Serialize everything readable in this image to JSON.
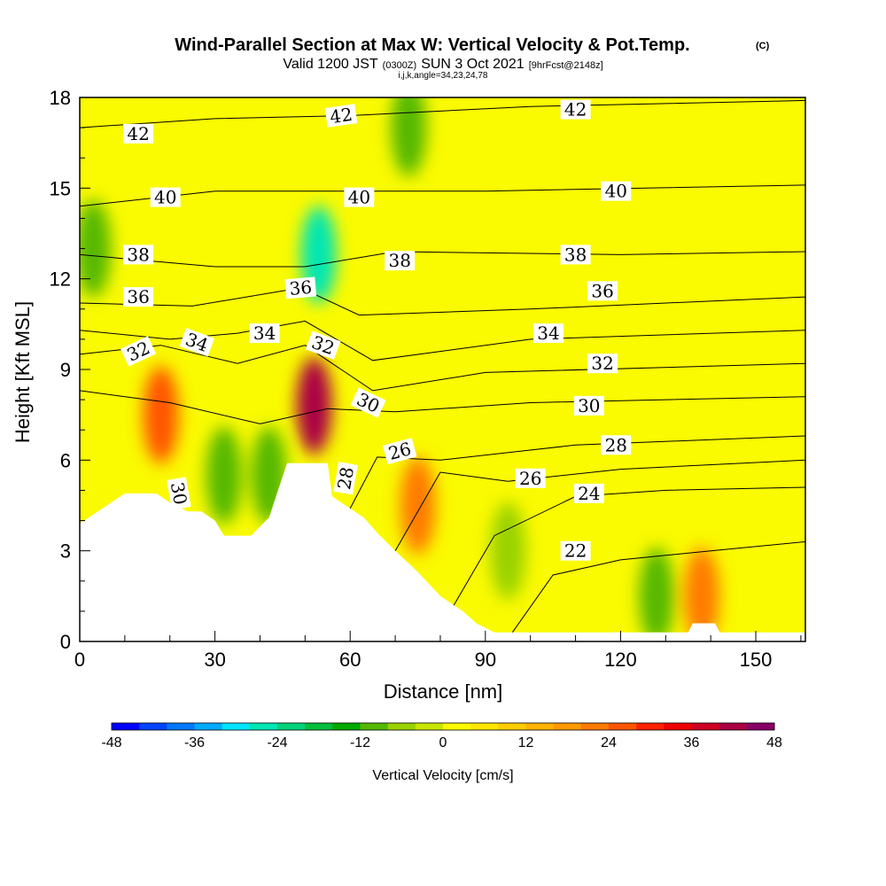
{
  "header": {
    "title": "Wind-Parallel Section at Max W: Vertical Velocity & Pot.Temp.",
    "copyright": "(C)",
    "valid_prefix": "Valid 1200 JST",
    "valid_utc": "(0300Z)",
    "valid_date": "SUN 3 Oct 2021",
    "forecast": "[9hrFcst@2148z]",
    "params": "i,j,k,angle=34,23,24,78"
  },
  "colors": {
    "terrain": "#ffffff",
    "contour_line": "#000000",
    "frame": "#000000"
  },
  "chart_data": {
    "type": "heatmap",
    "title": "Wind-Parallel Section at Max W: Vertical Velocity & Pot.Temp.",
    "xlabel": "Distance [nm]",
    "ylabel": "Height [Kft MSL]",
    "xlim": [
      0,
      161
    ],
    "ylim": [
      0,
      18
    ],
    "x_ticks": [
      "0",
      "30",
      "60",
      "90",
      "120",
      "150"
    ],
    "y_ticks": [
      "0",
      "3",
      "6",
      "9",
      "12",
      "15",
      "18"
    ],
    "colorbar": {
      "title": "Vertical Velocity [cm/s]",
      "levels": [
        -48,
        -44,
        -40,
        -36,
        -32,
        -28,
        -24,
        -20,
        -16,
        -12,
        -8,
        -4,
        0,
        4,
        8,
        12,
        16,
        20,
        24,
        28,
        32,
        36,
        40,
        44,
        48
      ],
      "tick_labels": [
        "-48",
        "-36",
        "-24",
        "-12",
        "0",
        "12",
        "24",
        "36",
        "48"
      ],
      "colors": [
        "#0000ff",
        "#0044ff",
        "#0077ff",
        "#00aaff",
        "#00e5ff",
        "#00e6b4",
        "#00d27a",
        "#00be3c",
        "#00aa00",
        "#55b800",
        "#99d200",
        "#c8e600",
        "#fafa00",
        "#ffe600",
        "#ffcc00",
        "#ffb300",
        "#ff9900",
        "#ff7a00",
        "#ff5500",
        "#ff2200",
        "#ee0000",
        "#cc0022",
        "#aa0044",
        "#880066",
        "#660088"
      ]
    },
    "velocity_features": [
      {
        "x": 18,
        "y": 7.5,
        "w_cm_s": 24
      },
      {
        "x": 52,
        "y": 7.8,
        "w_cm_s": 40
      },
      {
        "x": 53,
        "y": 12.8,
        "w_cm_s": -28
      },
      {
        "x": 42,
        "y": 5.5,
        "w_cm_s": -12
      },
      {
        "x": 32,
        "y": 5.5,
        "w_cm_s": -12
      },
      {
        "x": 75,
        "y": 4.5,
        "w_cm_s": 20
      },
      {
        "x": 95,
        "y": 3.0,
        "w_cm_s": -8
      },
      {
        "x": 3,
        "y": 13,
        "w_cm_s": -12
      },
      {
        "x": 73,
        "y": 17,
        "w_cm_s": -12
      },
      {
        "x": 128,
        "y": 1.5,
        "w_cm_s": -12
      },
      {
        "x": 138,
        "y": 1.5,
        "w_cm_s": 20
      }
    ],
    "terrain_profile": [
      {
        "x": 0,
        "y": 3.9
      },
      {
        "x": 3,
        "y": 4.2
      },
      {
        "x": 6,
        "y": 4.5
      },
      {
        "x": 10,
        "y": 4.9
      },
      {
        "x": 13,
        "y": 4.9
      },
      {
        "x": 17,
        "y": 4.9
      },
      {
        "x": 20,
        "y": 4.6
      },
      {
        "x": 24,
        "y": 4.3
      },
      {
        "x": 27,
        "y": 4.3
      },
      {
        "x": 30,
        "y": 4.0
      },
      {
        "x": 32,
        "y": 3.5
      },
      {
        "x": 35,
        "y": 3.5
      },
      {
        "x": 38,
        "y": 3.5
      },
      {
        "x": 40,
        "y": 3.8
      },
      {
        "x": 42,
        "y": 4.1
      },
      {
        "x": 44,
        "y": 5.0
      },
      {
        "x": 46,
        "y": 5.9
      },
      {
        "x": 48,
        "y": 5.9
      },
      {
        "x": 52,
        "y": 5.9
      },
      {
        "x": 55,
        "y": 5.9
      },
      {
        "x": 56,
        "y": 4.8
      },
      {
        "x": 58,
        "y": 4.6
      },
      {
        "x": 60,
        "y": 4.4
      },
      {
        "x": 63,
        "y": 4.1
      },
      {
        "x": 66,
        "y": 3.6
      },
      {
        "x": 70,
        "y": 3.0
      },
      {
        "x": 75,
        "y": 2.3
      },
      {
        "x": 80,
        "y": 1.5
      },
      {
        "x": 85,
        "y": 1.0
      },
      {
        "x": 88,
        "y": 0.6
      },
      {
        "x": 92,
        "y": 0.3
      },
      {
        "x": 96,
        "y": 0.3
      },
      {
        "x": 100,
        "y": 0.3
      },
      {
        "x": 110,
        "y": 0.3
      },
      {
        "x": 120,
        "y": 0.3
      },
      {
        "x": 130,
        "y": 0.3
      },
      {
        "x": 135,
        "y": 0.3
      },
      {
        "x": 136,
        "y": 0.6
      },
      {
        "x": 141,
        "y": 0.6
      },
      {
        "x": 142,
        "y": 0.3
      },
      {
        "x": 161,
        "y": 0.3
      }
    ],
    "theta_contours": [
      {
        "value": 22,
        "points": [
          [
            96,
            0.3
          ],
          [
            105,
            2.2
          ],
          [
            120,
            2.7
          ],
          [
            140,
            3.0
          ],
          [
            161,
            3.3
          ]
        ]
      },
      {
        "value": 24,
        "points": [
          [
            83,
            1.2
          ],
          [
            92,
            3.5
          ],
          [
            110,
            4.8
          ],
          [
            130,
            5.0
          ],
          [
            161,
            5.1
          ]
        ]
      },
      {
        "value": 26,
        "points": [
          [
            70,
            3.0
          ],
          [
            80,
            5.6
          ],
          [
            95,
            5.3
          ],
          [
            120,
            5.7
          ],
          [
            161,
            6.0
          ]
        ]
      },
      {
        "value": 28,
        "points": [
          [
            60,
            4.4
          ],
          [
            66,
            6.1
          ],
          [
            80,
            6.0
          ],
          [
            110,
            6.5
          ],
          [
            161,
            6.8
          ]
        ]
      },
      {
        "value": 30,
        "points": [
          [
            0,
            8.3
          ],
          [
            20,
            7.9
          ],
          [
            40,
            7.2
          ],
          [
            55,
            7.7
          ],
          [
            70,
            7.6
          ],
          [
            100,
            7.9
          ],
          [
            161,
            8.1
          ]
        ]
      },
      {
        "value": 32,
        "points": [
          [
            0,
            9.5
          ],
          [
            18,
            9.8
          ],
          [
            35,
            9.2
          ],
          [
            50,
            9.8
          ],
          [
            65,
            8.3
          ],
          [
            90,
            8.9
          ],
          [
            161,
            9.2
          ]
        ]
      },
      {
        "value": 34,
        "points": [
          [
            0,
            10.3
          ],
          [
            20,
            10.0
          ],
          [
            35,
            10.2
          ],
          [
            50,
            10.6
          ],
          [
            65,
            9.3
          ],
          [
            100,
            10.0
          ],
          [
            161,
            10.3
          ]
        ]
      },
      {
        "value": 36,
        "points": [
          [
            0,
            11.2
          ],
          [
            25,
            11.1
          ],
          [
            49,
            11.7
          ],
          [
            62,
            10.8
          ],
          [
            100,
            11.0
          ],
          [
            161,
            11.4
          ]
        ]
      },
      {
        "value": 38,
        "points": [
          [
            0,
            12.8
          ],
          [
            30,
            12.4
          ],
          [
            50,
            12.4
          ],
          [
            70,
            12.9
          ],
          [
            120,
            12.8
          ],
          [
            161,
            12.9
          ]
        ]
      },
      {
        "value": 40,
        "points": [
          [
            0,
            14.4
          ],
          [
            30,
            14.9
          ],
          [
            55,
            14.9
          ],
          [
            90,
            14.9
          ],
          [
            161,
            15.1
          ]
        ]
      },
      {
        "value": 42,
        "points": [
          [
            0,
            17.0
          ],
          [
            30,
            17.3
          ],
          [
            60,
            17.4
          ],
          [
            100,
            17.7
          ],
          [
            161,
            17.9
          ]
        ]
      }
    ],
    "contour_labels": [
      {
        "text": "42",
        "x": 13,
        "y": 16.8,
        "angle": 0
      },
      {
        "text": "42",
        "x": 58,
        "y": 17.4,
        "angle": -8
      },
      {
        "text": "42",
        "x": 110,
        "y": 17.6,
        "angle": 0
      },
      {
        "text": "40",
        "x": 19,
        "y": 14.7,
        "angle": 0
      },
      {
        "text": "40",
        "x": 62,
        "y": 14.7,
        "angle": 0
      },
      {
        "text": "40",
        "x": 119,
        "y": 14.9,
        "angle": 0
      },
      {
        "text": "38",
        "x": 13,
        "y": 12.8,
        "angle": 0
      },
      {
        "text": "38",
        "x": 71,
        "y": 12.6,
        "angle": 0
      },
      {
        "text": "38",
        "x": 110,
        "y": 12.8,
        "angle": 0
      },
      {
        "text": "36",
        "x": 13,
        "y": 11.4,
        "angle": 0
      },
      {
        "text": "36",
        "x": 49,
        "y": 11.7,
        "angle": -5
      },
      {
        "text": "36",
        "x": 116,
        "y": 11.6,
        "angle": 0
      },
      {
        "text": "34",
        "x": 26,
        "y": 9.9,
        "angle": 20
      },
      {
        "text": "34",
        "x": 41,
        "y": 10.2,
        "angle": 0
      },
      {
        "text": "34",
        "x": 104,
        "y": 10.2,
        "angle": 0
      },
      {
        "text": "32",
        "x": 13,
        "y": 9.6,
        "angle": -25
      },
      {
        "text": "32",
        "x": 54,
        "y": 9.8,
        "angle": 20
      },
      {
        "text": "32",
        "x": 116,
        "y": 9.2,
        "angle": 0
      },
      {
        "text": "30",
        "x": 64,
        "y": 7.9,
        "angle": 25
      },
      {
        "text": "30",
        "x": 113,
        "y": 7.8,
        "angle": 0
      },
      {
        "text": "30",
        "x": 22,
        "y": 4.9,
        "angle": 80
      },
      {
        "text": "28",
        "x": 59,
        "y": 5.4,
        "angle": -80
      },
      {
        "text": "28",
        "x": 119,
        "y": 6.5,
        "angle": 0
      },
      {
        "text": "26",
        "x": 71,
        "y": 6.3,
        "angle": -15
      },
      {
        "text": "26",
        "x": 100,
        "y": 5.4,
        "angle": 0
      },
      {
        "text": "24",
        "x": 113,
        "y": 4.9,
        "angle": 0
      },
      {
        "text": "22",
        "x": 110,
        "y": 3.0,
        "angle": 0
      }
    ]
  }
}
